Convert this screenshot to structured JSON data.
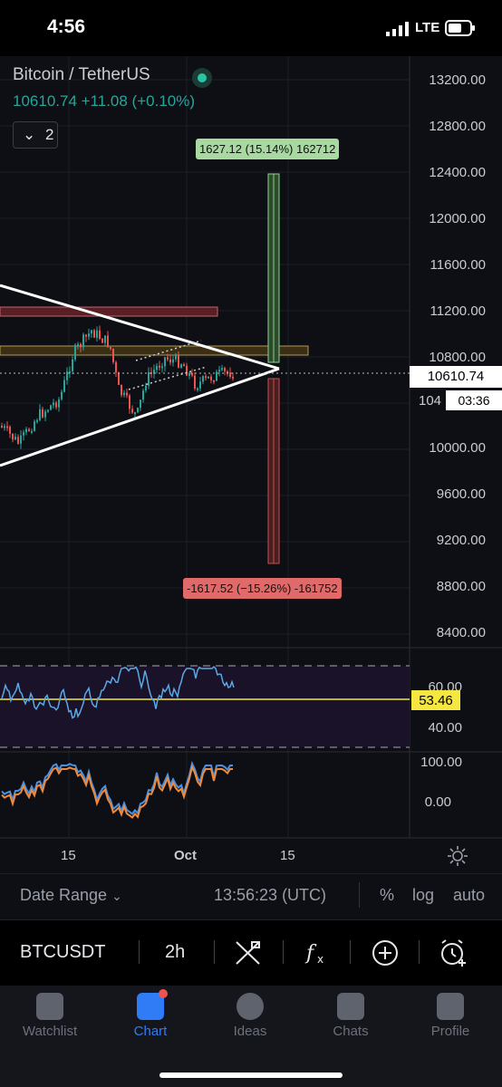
{
  "status_bar": {
    "time": "4:56",
    "network": "LTE"
  },
  "header": {
    "symbol": "Bitcoin / TetherUS",
    "price_line": "10610.74 +11.08 (+0.10%)",
    "indicator_count": "2"
  },
  "price_axis": {
    "ticks": [
      "13200.00",
      "12800.00",
      "12400.00",
      "12000.00",
      "11600.00",
      "11200.00",
      "10800.00",
      "10000.00",
      "9600.00",
      "9200.00",
      "8800.00",
      "8400.00"
    ],
    "partial_tick": "104",
    "last_price": "10610.74",
    "countdown": "03:36"
  },
  "projection": {
    "gain_label": "1627.12 (15.14%) 162712",
    "loss_label": "-1617.52 (−15.26%) -161752"
  },
  "rsi": {
    "ticks": [
      "60.00",
      "40.00"
    ],
    "value": "53.46"
  },
  "stoch": {
    "ticks": [
      "100.00",
      "0.00"
    ]
  },
  "time_axis": {
    "ticks": [
      "15",
      "Oct",
      "15"
    ]
  },
  "date_range_bar": {
    "date_range_label": "Date Range",
    "clock": "13:56:23 (UTC)",
    "percent": "%",
    "log": "log",
    "auto": "auto"
  },
  "toolbar": {
    "symbol": "BTCUSDT",
    "interval": "2h"
  },
  "tabs": [
    {
      "label": "Watchlist",
      "icon": "watchlist-icon"
    },
    {
      "label": "Chart",
      "icon": "chart-icon"
    },
    {
      "label": "Ideas",
      "icon": "ideas-icon"
    },
    {
      "label": "Chats",
      "icon": "chats-icon"
    },
    {
      "label": "Profile",
      "icon": "profile-icon"
    }
  ],
  "colors": {
    "up": "#26a69a",
    "down": "#ef5350",
    "accent": "#2f7cf6",
    "rsi_line": "#5aa9e6",
    "rsi_level": "#f5e641"
  }
}
